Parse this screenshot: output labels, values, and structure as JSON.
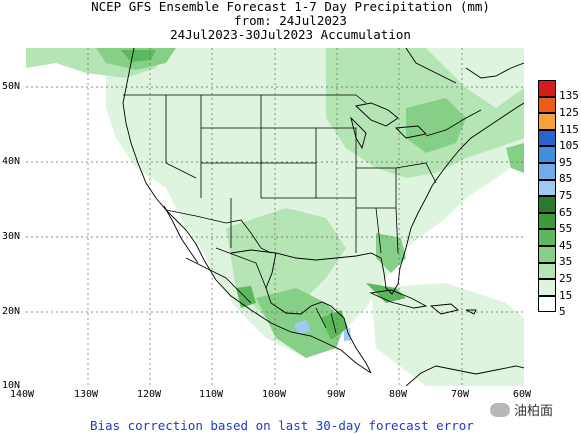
{
  "title": {
    "line1": "NCEP GFS Ensemble Forecast 1-7 Day Precipitation (mm)",
    "line2": "from: 24Jul2023",
    "line3": "24Jul2023-30Jul2023 Accumulation"
  },
  "axes": {
    "lat_labels": [
      "50N",
      "40N",
      "30N",
      "20N",
      "10N"
    ],
    "lon_labels": [
      "140W",
      "130W",
      "120W",
      "110W",
      "100W",
      "90W",
      "80W",
      "70W",
      "60W"
    ]
  },
  "legend": {
    "levels": [
      {
        "label": "135",
        "color": "#d71a1a"
      },
      {
        "label": "125",
        "color": "#ee5a19"
      },
      {
        "label": "115",
        "color": "#f7a13a"
      },
      {
        "label": "105",
        "color": "#2a62cf"
      },
      {
        "label": "95",
        "color": "#3f8fdd"
      },
      {
        "label": "85",
        "color": "#70acec"
      },
      {
        "label": "75",
        "color": "#9ccaf2"
      },
      {
        "label": "65",
        "color": "#2b7a2b"
      },
      {
        "label": "55",
        "color": "#3c9b3c"
      },
      {
        "label": "45",
        "color": "#5cb85c"
      },
      {
        "label": "35",
        "color": "#86cf86"
      },
      {
        "label": "25",
        "color": "#b5e4b5"
      },
      {
        "label": "15",
        "color": "#dff4df"
      },
      {
        "label": "5",
        "color": "#ffffff"
      }
    ]
  },
  "footer": "Bias correction based on last 30-day forecast error",
  "watermark": "油柏面"
}
